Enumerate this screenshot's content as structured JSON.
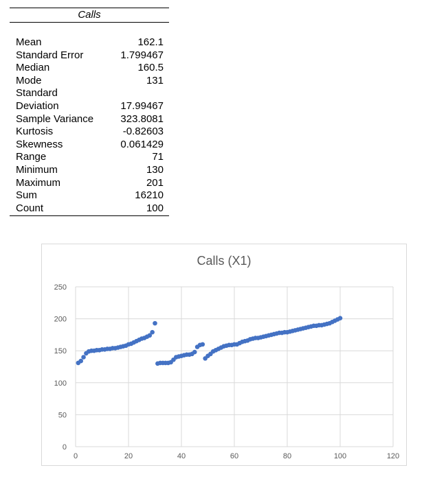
{
  "stats": {
    "header": "Calls",
    "rows": [
      {
        "label": "Mean",
        "value": "162.1"
      },
      {
        "label": "Standard Error",
        "value": "1.799467"
      },
      {
        "label": "Median",
        "value": "160.5"
      },
      {
        "label": "Mode",
        "value": "131"
      },
      {
        "label": "Standard\nDeviation",
        "value": "17.99467"
      },
      {
        "label": "Sample Variance",
        "value": "323.8081"
      },
      {
        "label": "Kurtosis",
        "value": "-0.82603"
      },
      {
        "label": "Skewness",
        "value": "0.061429"
      },
      {
        "label": "Range",
        "value": "71"
      },
      {
        "label": "Minimum",
        "value": "130"
      },
      {
        "label": "Maximum",
        "value": "201"
      },
      {
        "label": "Sum",
        "value": "16210"
      },
      {
        "label": "Count",
        "value": "100"
      }
    ]
  },
  "chart_data": {
    "type": "scatter",
    "title": "Calls (X1)",
    "xlim": [
      0,
      120
    ],
    "ylim": [
      0,
      250
    ],
    "xticks": [
      0,
      20,
      40,
      60,
      80,
      100,
      120
    ],
    "yticks": [
      0,
      50,
      100,
      150,
      200,
      250
    ],
    "grid": true,
    "marker_color": "#4472c4",
    "series": [
      {
        "x": [
          1,
          2,
          3,
          4,
          5,
          6,
          7,
          8,
          9,
          10,
          11,
          12,
          13,
          14,
          15,
          16,
          17,
          18,
          19,
          20,
          21,
          22,
          23,
          24,
          25,
          26,
          27,
          28,
          29,
          30,
          31,
          32,
          33,
          34,
          35,
          36,
          37,
          38,
          39,
          40,
          41,
          42,
          43,
          44,
          45,
          46,
          47,
          48,
          49,
          50,
          51,
          52,
          53,
          54,
          55,
          56,
          57,
          58,
          59,
          60,
          61,
          62,
          63,
          64,
          65,
          66,
          67,
          68,
          69,
          70,
          71,
          72,
          73,
          74,
          75,
          76,
          77,
          78,
          79,
          80,
          81,
          82,
          83,
          84,
          85,
          86,
          87,
          88,
          89,
          90,
          91,
          92,
          93,
          94,
          95,
          96,
          97,
          98,
          99,
          100
        ],
        "y": [
          131,
          134,
          140,
          146,
          149,
          150,
          150,
          151,
          151,
          152,
          152,
          153,
          153,
          154,
          154,
          155,
          156,
          157,
          158,
          160,
          161,
          163,
          165,
          167,
          169,
          170,
          172,
          174,
          179,
          193,
          130,
          131,
          131,
          131,
          131,
          132,
          136,
          140,
          141,
          142,
          143,
          144,
          144,
          145,
          148,
          156,
          159,
          160,
          138,
          142,
          145,
          149,
          151,
          153,
          155,
          157,
          158,
          159,
          159,
          160,
          160,
          162,
          164,
          165,
          166,
          168,
          169,
          170,
          170,
          171,
          172,
          173,
          174,
          175,
          176,
          177,
          178,
          178,
          179,
          179,
          180,
          181,
          182,
          183,
          184,
          185,
          186,
          187,
          188,
          189,
          189,
          190,
          190,
          191,
          192,
          193,
          195,
          197,
          199,
          201
        ]
      }
    ]
  }
}
